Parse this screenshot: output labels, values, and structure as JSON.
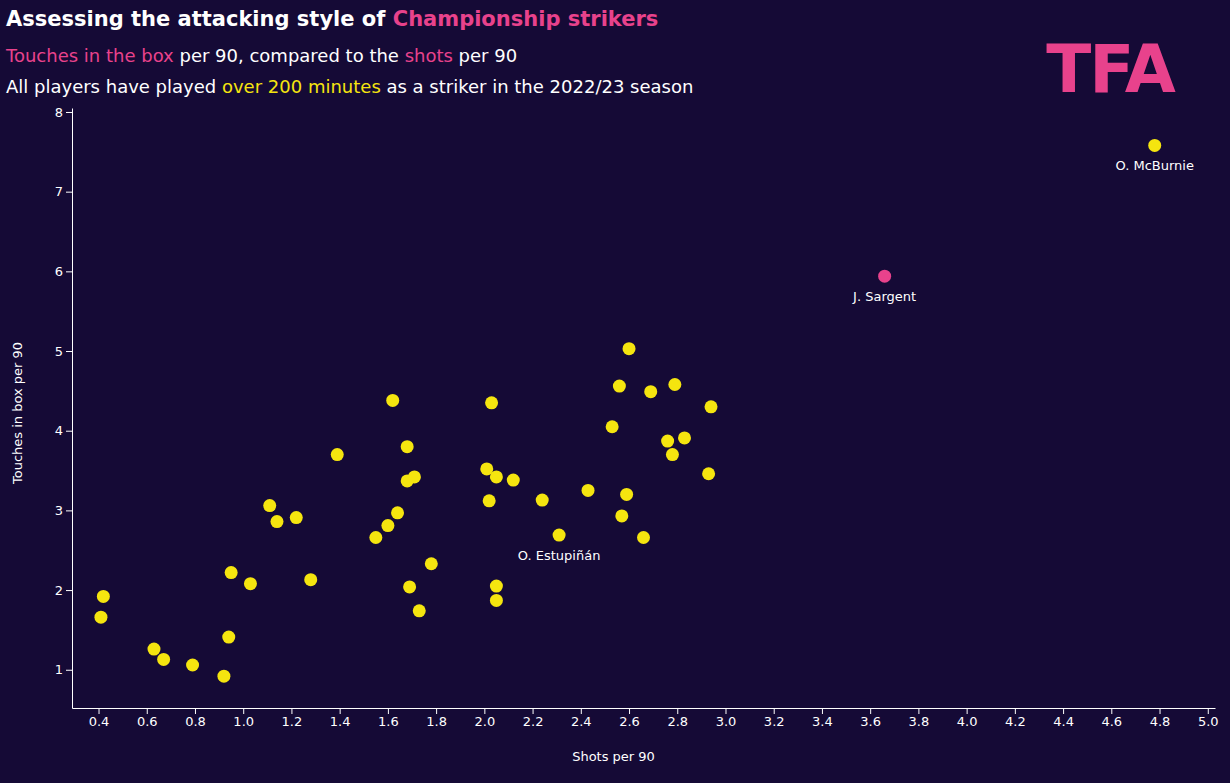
{
  "chart_data": {
    "type": "scatter",
    "title": [
      {
        "text": "Assessing the attacking style of ",
        "color": "#ffffff"
      },
      {
        "text": "Championship strikers",
        "color": "#e8428c"
      }
    ],
    "subtitle": [
      [
        {
          "text": "Touches in the box",
          "color": "#e8428c"
        },
        {
          "text": " per 90, compared to the ",
          "color": "#ffffff"
        },
        {
          "text": "shots",
          "color": "#e8428c"
        },
        {
          "text": " per 90",
          "color": "#ffffff"
        }
      ],
      [
        {
          "text": "All players have played ",
          "color": "#ffffff"
        },
        {
          "text": "over 200 minutes",
          "color": "#f5e50f"
        },
        {
          "text": " as a striker in the 2022/23 season",
          "color": "#ffffff"
        }
      ]
    ],
    "logo": "TFA",
    "x_label": "Shots per 90",
    "y_label": "Touches in box per 90",
    "x": [
      0.41,
      0.42,
      0.63,
      0.67,
      0.79,
      0.92,
      0.94,
      0.95,
      1.03,
      1.11,
      1.14,
      1.22,
      1.28,
      1.39,
      1.55,
      1.6,
      1.62,
      1.64,
      1.68,
      1.68,
      1.69,
      1.71,
      1.73,
      1.78,
      2.01,
      2.02,
      2.03,
      2.05,
      2.05,
      2.05,
      2.12,
      2.24,
      2.31,
      2.43,
      2.53,
      2.56,
      2.57,
      2.59,
      2.6,
      2.66,
      2.69,
      2.76,
      2.78,
      2.79,
      2.83,
      2.93,
      2.94,
      3.66,
      4.78
    ],
    "y": [
      1.66,
      1.92,
      1.26,
      1.13,
      1.06,
      0.92,
      1.41,
      2.22,
      2.08,
      3.06,
      2.86,
      2.91,
      2.13,
      3.7,
      2.66,
      2.81,
      4.38,
      2.97,
      3.8,
      3.37,
      2.04,
      3.42,
      1.74,
      2.33,
      3.52,
      3.12,
      4.35,
      3.42,
      2.05,
      1.87,
      3.38,
      3.13,
      2.69,
      3.25,
      4.05,
      4.56,
      2.93,
      3.2,
      5.03,
      2.66,
      4.49,
      3.87,
      3.7,
      4.58,
      3.91,
      3.46,
      4.3,
      5.94,
      7.58
    ],
    "labels": [
      null,
      null,
      null,
      null,
      null,
      null,
      null,
      null,
      null,
      null,
      null,
      null,
      null,
      null,
      null,
      null,
      null,
      null,
      null,
      null,
      null,
      null,
      null,
      null,
      null,
      null,
      null,
      null,
      null,
      null,
      null,
      null,
      "O. Estupiñán",
      null,
      null,
      null,
      null,
      null,
      null,
      null,
      null,
      null,
      null,
      null,
      null,
      null,
      null,
      "J. Sargent",
      "O. McBurnie"
    ],
    "colors": [
      "#f5e50f",
      "#f5e50f",
      "#f5e50f",
      "#f5e50f",
      "#f5e50f",
      "#f5e50f",
      "#f5e50f",
      "#f5e50f",
      "#f5e50f",
      "#f5e50f",
      "#f5e50f",
      "#f5e50f",
      "#f5e50f",
      "#f5e50f",
      "#f5e50f",
      "#f5e50f",
      "#f5e50f",
      "#f5e50f",
      "#f5e50f",
      "#f5e50f",
      "#f5e50f",
      "#f5e50f",
      "#f5e50f",
      "#f5e50f",
      "#f5e50f",
      "#f5e50f",
      "#f5e50f",
      "#f5e50f",
      "#f5e50f",
      "#f5e50f",
      "#f5e50f",
      "#f5e50f",
      "#f5e50f",
      "#f5e50f",
      "#f5e50f",
      "#f5e50f",
      "#f5e50f",
      "#f5e50f",
      "#f5e50f",
      "#f5e50f",
      "#f5e50f",
      "#f5e50f",
      "#f5e50f",
      "#f5e50f",
      "#f5e50f",
      "#f5e50f",
      "#f5e50f",
      "#e8428c",
      "#f5e50f"
    ],
    "xlim": [
      0.29,
      5.03
    ],
    "ylim": [
      0.52,
      8.05
    ],
    "xticks": [
      0.4,
      0.6,
      0.8,
      {
        "value": 1,
        "label": "1.0"
      },
      1.2,
      1.4,
      1.6,
      1.8,
      {
        "value": 2,
        "label": "2.0"
      },
      2.2,
      2.4,
      2.6,
      2.8,
      {
        "value": 3,
        "label": "3.0"
      },
      3.2,
      3.4,
      3.6,
      3.8,
      {
        "value": 4,
        "label": "4.0"
      },
      4.2,
      4.4,
      4.6,
      4.8,
      {
        "value": 5,
        "label": "5.0"
      }
    ],
    "yticks": [
      1,
      2,
      3,
      4,
      5,
      6,
      7,
      8
    ],
    "grid": false
  }
}
